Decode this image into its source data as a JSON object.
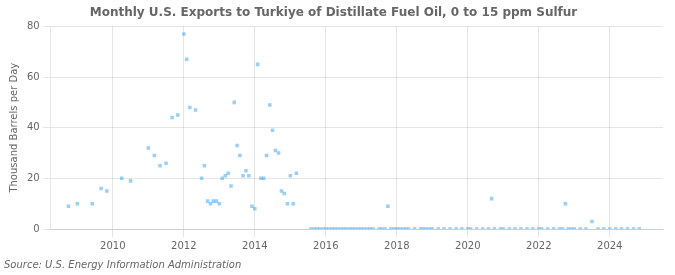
{
  "chart_data": {
    "type": "scatter",
    "title": "Monthly U.S. Exports to Turkiye of Distillate Fuel Oil, 0 to 15 ppm Sulfur",
    "ylabel": "Thousand Barrels per Day",
    "annotations": [
      "Source: U.S. Energy Information Administration"
    ],
    "marker": "square",
    "grid": true,
    "xlim": [
      2008.25,
      2025.5
    ],
    "ylim": [
      0,
      80
    ],
    "xticks": [
      2010,
      2012,
      2014,
      2016,
      2018,
      2020,
      2022,
      2024
    ],
    "yticks": [
      0,
      20,
      40,
      60,
      80
    ],
    "x": [
      2008.75,
      2009.0,
      2009.42,
      2009.67,
      2009.83,
      2010.25,
      2010.5,
      2011.0,
      2011.17,
      2011.33,
      2011.5,
      2011.67,
      2011.83,
      2012.0,
      2012.08,
      2012.17,
      2012.33,
      2012.5,
      2012.58,
      2012.67,
      2012.75,
      2012.83,
      2012.92,
      2013.0,
      2013.08,
      2013.17,
      2013.25,
      2013.33,
      2013.42,
      2013.5,
      2013.58,
      2013.67,
      2013.75,
      2013.83,
      2013.92,
      2014.0,
      2014.08,
      2014.17,
      2014.25,
      2014.33,
      2014.42,
      2014.5,
      2014.58,
      2014.67,
      2014.75,
      2014.83,
      2014.92,
      2015.0,
      2015.08,
      2015.17,
      2015.58,
      2015.67,
      2015.75,
      2015.83,
      2015.92,
      2016.0,
      2016.08,
      2016.17,
      2016.25,
      2016.33,
      2016.42,
      2016.5,
      2016.58,
      2016.67,
      2016.75,
      2016.83,
      2016.92,
      2017.0,
      2017.08,
      2017.17,
      2017.25,
      2017.33,
      2017.5,
      2017.58,
      2017.67,
      2017.75,
      2017.83,
      2017.92,
      2018.0,
      2018.08,
      2018.17,
      2018.25,
      2018.33,
      2018.5,
      2018.67,
      2018.75,
      2018.83,
      2018.92,
      2019.0,
      2019.17,
      2019.33,
      2019.5,
      2019.67,
      2019.83,
      2020.0,
      2020.08,
      2020.25,
      2020.42,
      2020.58,
      2020.67,
      2020.75,
      2020.92,
      2021.0,
      2021.17,
      2021.33,
      2021.5,
      2021.67,
      2021.83,
      2022.0,
      2022.08,
      2022.25,
      2022.42,
      2022.58,
      2022.67,
      2022.75,
      2022.83,
      2022.92,
      2023.0,
      2023.17,
      2023.33,
      2023.5,
      2023.67,
      2023.83,
      2024.0,
      2024.17,
      2024.33,
      2024.5,
      2024.67,
      2024.83
    ],
    "values": [
      9,
      10,
      10,
      16,
      15,
      20,
      19,
      32,
      29,
      25,
      26,
      44,
      45,
      77,
      67,
      48,
      47,
      20,
      25,
      11,
      10,
      11,
      11,
      10,
      20,
      21,
      22,
      17,
      50,
      33,
      29,
      21,
      23,
      21,
      9,
      8,
      65,
      20,
      20,
      29,
      49,
      39,
      31,
      30,
      15,
      14,
      10,
      21,
      10,
      22,
      0,
      0,
      0,
      0,
      0,
      0,
      0,
      0,
      0,
      0,
      0,
      0,
      0,
      0,
      0,
      0,
      0,
      0,
      0,
      0,
      0,
      0,
      0,
      0,
      0,
      9,
      0,
      0,
      0,
      0,
      0,
      0,
      0,
      0,
      0,
      0,
      0,
      0,
      0,
      0,
      0,
      0,
      0,
      0,
      0,
      0,
      0,
      0,
      0,
      12,
      0,
      0,
      0,
      0,
      0,
      0,
      0,
      0,
      0,
      0,
      0,
      0,
      0,
      0,
      10,
      0,
      0,
      0,
      0,
      0,
      3,
      0,
      0,
      0,
      0,
      0,
      0,
      0,
      0
    ]
  }
}
